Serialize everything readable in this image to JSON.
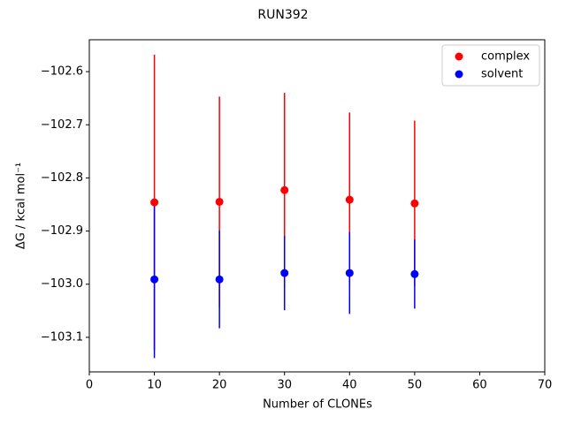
{
  "chart_data": {
    "type": "scatter",
    "title": "RUN392",
    "x_label": "Number of CLONEs",
    "y_label": "ΔG / kcal mol⁻¹",
    "x": [
      10,
      20,
      30,
      40,
      50
    ],
    "series": [
      {
        "name": "complex",
        "color": "#ff0000",
        "values": [
          -102.846,
          -102.845,
          -102.823,
          -102.841,
          -102.848
        ],
        "errors": [
          0.278,
          0.198,
          0.183,
          0.164,
          0.156
        ]
      },
      {
        "name": "solvent",
        "color": "#0000ff",
        "values": [
          -102.991,
          -102.991,
          -102.979,
          -102.979,
          -102.981
        ],
        "errors": [
          0.148,
          0.092,
          0.07,
          0.077,
          0.065
        ]
      }
    ],
    "xlim": [
      0,
      70
    ],
    "xticks": [
      0,
      10,
      20,
      30,
      40,
      50,
      60,
      70
    ],
    "ylim": [
      -103.165,
      -102.54
    ],
    "yticks": [
      {
        "value": -102.6,
        "label": "−102.6"
      },
      {
        "value": -102.7,
        "label": "−102.7"
      },
      {
        "value": -102.8,
        "label": "−102.8"
      },
      {
        "value": -102.9,
        "label": "−102.9"
      },
      {
        "value": -103.0,
        "label": "−103.0"
      },
      {
        "value": -103.1,
        "label": "−103.1"
      }
    ],
    "grid": false,
    "legend": "upper right"
  }
}
